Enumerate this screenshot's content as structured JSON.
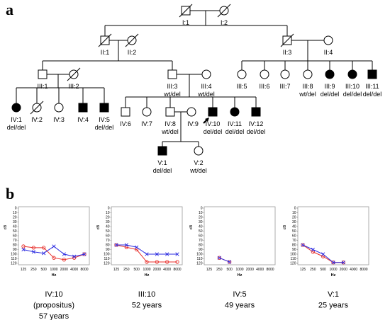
{
  "panels": {
    "a": "a",
    "b": "b"
  },
  "pedigree": {
    "gen1": [
      "I:1",
      "I:2"
    ],
    "gen2": [
      "II:1",
      "II:2",
      "II:3",
      "II:4"
    ],
    "gen3": [
      "III:1",
      "III:2",
      "III:3",
      "III:4",
      "III:5",
      "III:6",
      "III:7",
      "III:8",
      "III:9",
      "III:10",
      "III:11"
    ],
    "gen3_geno": {
      "III:3": "wt/del",
      "III:4": "wt/del",
      "III:8": "wt/del",
      "III:9": "del/del",
      "III:10": "del/del",
      "III:11": "del/del"
    },
    "gen4": [
      "IV:1",
      "IV:2",
      "IV:3",
      "IV:4",
      "IV:5",
      "IV:6",
      "IV:7",
      "IV:8",
      "IV:9",
      "IV:10",
      "IV:11",
      "IV:12"
    ],
    "gen4_geno": {
      "IV:1": "del/del",
      "IV:5": "del/del",
      "IV:8": "wt/del",
      "IV:10": "del/del",
      "IV:11": "del/del",
      "IV:12": "del/del"
    },
    "gen5": [
      "V:1",
      "V:2"
    ],
    "gen5_geno": {
      "V:1": "del/del",
      "V:2": "wt/del"
    }
  },
  "audiograms": {
    "ylabel": "dB",
    "xlabel": "Hz",
    "yticks": [
      0,
      10,
      20,
      30,
      40,
      50,
      60,
      70,
      80,
      90,
      100,
      110,
      120
    ],
    "xticks": [
      "125",
      "250",
      "500",
      "1000",
      "2000",
      "4000",
      "8000"
    ],
    "colors": {
      "right_ear": "#e8322e",
      "left_ear": "#2b2be0"
    }
  },
  "chart_data": [
    {
      "type": "line",
      "x": [
        "125",
        "250",
        "500",
        "1000",
        "2000",
        "4000",
        "8000"
      ],
      "series": [
        {
          "values": [
            83,
            86,
            86,
            108,
            112,
            108,
            100
          ]
        },
        {
          "values": [
            90,
            95,
            98,
            83,
            100,
            105,
            100
          ]
        }
      ],
      "ylim": [
        0,
        120
      ],
      "xlabel": "Hz",
      "ylabel": "dB",
      "caption": [
        "IV:10",
        "(propositus)",
        "57 years"
      ]
    },
    {
      "type": "line",
      "x": [
        "125",
        "250",
        "500",
        "1000",
        "2000",
        "4000",
        "8000"
      ],
      "series": [
        {
          "values": [
            80,
            85,
            90,
            117,
            117,
            117,
            117
          ]
        },
        {
          "values": [
            80,
            80,
            85,
            100,
            100,
            100,
            100
          ]
        }
      ],
      "ylim": [
        0,
        120
      ],
      "xlabel": "Hz",
      "ylabel": "dB",
      "caption": [
        "III:10",
        "52 years"
      ]
    },
    {
      "type": "line",
      "x": [
        "125",
        "250",
        "500",
        "1000",
        "2000",
        "4000",
        "8000"
      ],
      "series": [
        {
          "values": [
            null,
            108,
            117,
            null,
            null,
            null,
            null
          ]
        },
        {
          "values": [
            null,
            108,
            117,
            null,
            null,
            null,
            null
          ]
        }
      ],
      "ylim": [
        0,
        120
      ],
      "xlabel": "Hz",
      "ylabel": "dB",
      "caption": [
        "IV:5",
        "49 years"
      ]
    },
    {
      "type": "line",
      "x": [
        "125",
        "250",
        "500",
        "1000",
        "2000",
        "4000",
        "8000"
      ],
      "series": [
        {
          "values": [
            80,
            95,
            105,
            118,
            118,
            null,
            null
          ]
        },
        {
          "values": [
            80,
            90,
            100,
            118,
            118,
            null,
            null
          ]
        }
      ],
      "ylim": [
        0,
        120
      ],
      "xlabel": "Hz",
      "ylabel": "dB",
      "caption": [
        "V:1",
        "25 years"
      ]
    }
  ]
}
